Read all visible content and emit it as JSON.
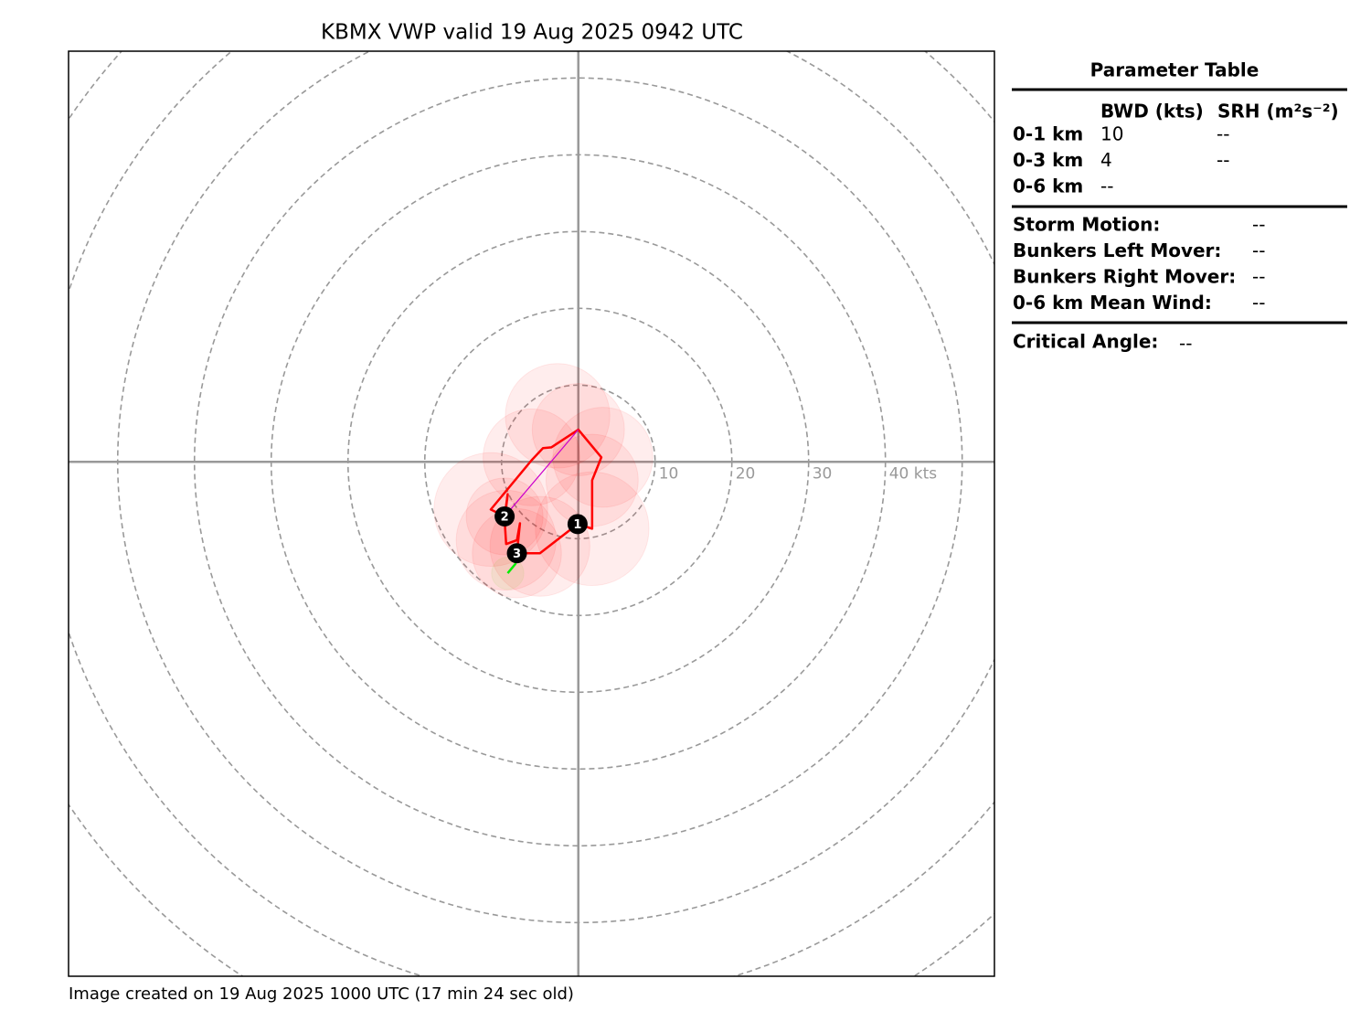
{
  "chart_data": {
    "type": "hodograph",
    "title": "KBMX VWP valid 19 Aug 2025 0942 UTC",
    "footer": "Image created on 19 Aug 2025 1000 UTC (17 min 24 sec old)",
    "xlim": [
      -66.4,
      54.2
    ],
    "ylim": [
      -67.0,
      53.5
    ],
    "rings": [
      10,
      20,
      30,
      40,
      50,
      60,
      70,
      80
    ],
    "ring_labels": [
      {
        "value": 10,
        "label": "10"
      },
      {
        "value": 20,
        "label": "20"
      },
      {
        "value": 30,
        "label": "30"
      },
      {
        "value": 40,
        "label": "40 kts"
      }
    ],
    "uncertainty": [
      {
        "u": -2.7,
        "v": 6.0,
        "r": 6.8,
        "color": "#ff0000"
      },
      {
        "u": 0.0,
        "v": 4.2,
        "r": 6.0,
        "color": "#ff0000"
      },
      {
        "u": 3.2,
        "v": 0.6,
        "r": 6.5,
        "color": "#ff0000"
      },
      {
        "u": -6.1,
        "v": 0.6,
        "r": 6.3,
        "color": "#ff0000"
      },
      {
        "u": 1.8,
        "v": -2.4,
        "r": 6.0,
        "color": "#ff0000"
      },
      {
        "u": 1.8,
        "v": -8.7,
        "r": 7.4,
        "color": "#ff0000"
      },
      {
        "u": -11.4,
        "v": -6.2,
        "r": 7.4,
        "color": "#ff0000"
      },
      {
        "u": -9.6,
        "v": -7.1,
        "r": 5.0,
        "color": "#ff0000"
      },
      {
        "u": -9.4,
        "v": -10.2,
        "r": 6.5,
        "color": "#ff0000"
      },
      {
        "u": -5.0,
        "v": -11.0,
        "r": 6.5,
        "color": "#ff0000"
      },
      {
        "u": -8.0,
        "v": -11.9,
        "r": 5.8,
        "color": "#ff0000"
      },
      {
        "u": -9.2,
        "v": -14.5,
        "r": 2.1,
        "color": "#66cc00"
      }
    ],
    "hodograph": [
      {
        "color": "#00ee00",
        "u": [
          -9.2,
          -8.2,
          -8.0
        ],
        "v": [
          -14.5,
          -13.3,
          -11.9
        ]
      },
      {
        "color": "#ff0000",
        "u": [
          -8.0,
          -5.0,
          -0.1,
          1.8,
          1.8,
          3.0,
          0.0,
          -3.5,
          -4.6,
          -6.1,
          -11.4,
          -9.6,
          -9.2,
          -9.6,
          -9.4,
          -8.0,
          -7.6,
          -8.0
        ],
        "v": [
          -11.9,
          -11.9,
          -8.1,
          -8.7,
          -2.4,
          0.6,
          4.2,
          1.9,
          1.8,
          0.2,
          -6.2,
          -7.1,
          -4.2,
          -7.6,
          -10.7,
          -10.2,
          -8.0,
          -11.9
        ]
      }
    ],
    "shear_vector": {
      "color": "#cc00cc",
      "u": [
        0.0,
        -9.6
      ],
      "v": [
        4.2,
        -7.1
      ]
    },
    "height_markers": [
      {
        "label": "1",
        "u": -0.1,
        "v": -8.1
      },
      {
        "label": "2",
        "u": -9.6,
        "v": -7.1
      },
      {
        "label": "3",
        "u": -8.0,
        "v": -11.9
      }
    ]
  },
  "parameter_table": {
    "title": "Parameter Table",
    "columns": [
      "BWD (kts)",
      "SRH (m²s⁻²)"
    ],
    "rows": [
      [
        "0-1 km",
        "10",
        "--"
      ],
      [
        "0-3 km",
        "4",
        "--"
      ],
      [
        "0-6 km",
        "--"
      ]
    ],
    "motions": [
      [
        "Storm Motion:",
        "--"
      ],
      [
        "Bunkers Left Mover:",
        "--"
      ],
      [
        "Bunkers Right Mover:",
        "--"
      ],
      [
        "0-6 km Mean Wind:",
        "--"
      ]
    ],
    "critical_angle": [
      "Critical Angle:",
      "--"
    ]
  }
}
